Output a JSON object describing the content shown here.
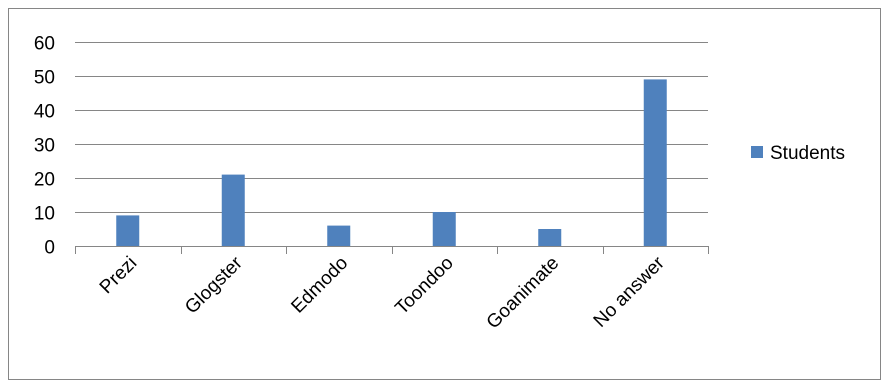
{
  "chart_data": {
    "type": "bar",
    "title": "",
    "xlabel": "",
    "ylabel": "",
    "categories": [
      "Prezi",
      "Glogster",
      "Edmodo",
      "Toondoo",
      "Goanimate",
      "No answer"
    ],
    "series": [
      {
        "name": "Students",
        "values": [
          9,
          21,
          6,
          10,
          5,
          49
        ],
        "color": "#4f81bd"
      }
    ],
    "ylim": [
      0,
      60
    ],
    "yticks": [
      "0",
      "10",
      "20",
      "30",
      "40",
      "50",
      "60"
    ],
    "grid": true,
    "legend_position": "right",
    "x_tick_rotation_deg": -45
  }
}
